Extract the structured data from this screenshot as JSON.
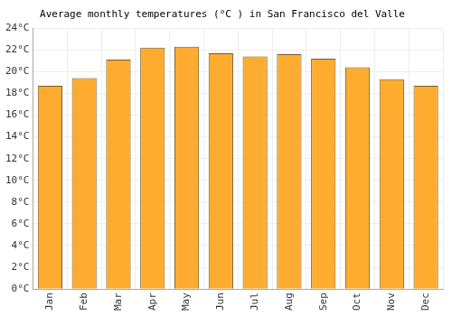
{
  "chart_data": {
    "type": "bar",
    "title": "Average monthly temperatures (°C ) in San Francisco del Valle",
    "categories": [
      "Jan",
      "Feb",
      "Mar",
      "Apr",
      "May",
      "Jun",
      "Jul",
      "Aug",
      "Sep",
      "Oct",
      "Nov",
      "Dec"
    ],
    "values": [
      18.7,
      19.4,
      21.1,
      22.2,
      22.3,
      21.7,
      21.4,
      21.6,
      21.2,
      20.4,
      19.3,
      18.7
    ],
    "color": "#fdac2f",
    "ylim": [
      0,
      24
    ],
    "yticks": [
      {
        "value": 0,
        "label": "0°C"
      },
      {
        "value": 2,
        "label": "2°C"
      },
      {
        "value": 4,
        "label": "4°C"
      },
      {
        "value": 6,
        "label": "6°C"
      },
      {
        "value": 8,
        "label": "8°C"
      },
      {
        "value": 10,
        "label": "10°C"
      },
      {
        "value": 12,
        "label": "12°C"
      },
      {
        "value": 14,
        "label": "14°C"
      },
      {
        "value": 16,
        "label": "16°C"
      },
      {
        "value": 18,
        "label": "18°C"
      },
      {
        "value": 20,
        "label": "20°C"
      },
      {
        "value": 22,
        "label": "22°C"
      },
      {
        "value": 24,
        "label": "24°C"
      }
    ],
    "grid": true
  }
}
